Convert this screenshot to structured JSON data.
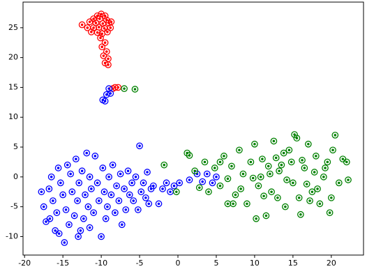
{
  "chart_data": {
    "type": "scatter",
    "xlim": [
      -20.2,
      24.2
    ],
    "ylim": [
      -13.1,
      29.3
    ],
    "xticks": [
      -20,
      -15,
      -10,
      -5,
      0,
      5,
      10,
      15,
      20
    ],
    "yticks": [
      -10,
      -5,
      0,
      5,
      10,
      15,
      20,
      25
    ],
    "series": [
      {
        "color": "#ff0000",
        "x": [
          -10.5,
          -10,
          -9.5,
          -11,
          -10.2,
          -9.3,
          -11.5,
          -10.7,
          -9.8,
          -9,
          -11.8,
          -11,
          -10.3,
          -9.6,
          -8.8,
          -11.3,
          -10.5,
          -9.9,
          -9.2,
          -10.1,
          -9.5,
          -9.9,
          -9.3,
          -9.7,
          -9.1,
          -9.5,
          -9.1,
          -8.5,
          -8.2,
          -7.8,
          -12.5,
          -8.7
        ],
        "y": [
          27,
          27.3,
          27,
          26.5,
          26.5,
          26.3,
          26,
          25.8,
          25.7,
          25.8,
          25,
          25,
          25.1,
          24.9,
          25,
          24.3,
          24.2,
          24,
          24.3,
          23.3,
          22.5,
          21.8,
          21,
          20.3,
          19.8,
          19.1,
          18.8,
          14.8,
          15,
          15,
          25.5,
          26
        ]
      },
      {
        "color": "#0000ff",
        "x": [
          -9,
          -9.3,
          -9.8,
          -9.5,
          -8.8,
          -17.8,
          -17.5,
          -17.2,
          -16.8,
          -16.5,
          -16.3,
          -16,
          -15.8,
          -15.6,
          -15.3,
          -15,
          -14.8,
          -14.6,
          -14.4,
          -14.2,
          -14,
          -13.8,
          -13.5,
          -13.3,
          -13.1,
          -12.9,
          -12.7,
          -12.5,
          -12.3,
          -12.1,
          -11.9,
          -11.7,
          -11.5,
          -11.3,
          -11,
          -10.8,
          -10.5,
          -10.3,
          -10,
          -9.8,
          -9.6,
          -9.4,
          -9.2,
          -9,
          -8.7,
          -8.5,
          -8.2,
          -8,
          -7.7,
          -7.5,
          -7.3,
          -7,
          -6.8,
          -6.5,
          -6.3,
          -6,
          -5.8,
          -5.5,
          -5.2,
          -5,
          -4.8,
          -4.5,
          -4.2,
          -4,
          -3.8,
          -3.5,
          -3.2,
          -2.5,
          -2,
          -1.5,
          -1,
          -0.5,
          0.2,
          1.5,
          2.5,
          3.2,
          3.8,
          4.5,
          5,
          -15.5,
          -13,
          -11.5,
          -16.7
        ],
        "y": [
          14.8,
          13.8,
          12.9,
          12.7,
          14,
          -2.5,
          -5,
          -7.5,
          -2,
          0,
          -4,
          -9,
          -6,
          1.5,
          -1,
          -3,
          -11,
          -5.5,
          2,
          -8,
          0.5,
          -2.5,
          -6.5,
          3,
          -4,
          -1,
          -9,
          1,
          -7,
          -3,
          4,
          -5,
          0,
          -2,
          -6,
          3.5,
          -1,
          -4,
          -10,
          1.5,
          -2.5,
          -7,
          -5,
          0,
          -3,
          2,
          -6,
          -1.5,
          -4,
          0.5,
          -8,
          -2,
          -5.5,
          1,
          -3,
          -1,
          -4,
          0,
          -5.5,
          5.2,
          -2.5,
          -1,
          -3.5,
          0.8,
          -4.5,
          -2,
          -1.5,
          -4.5,
          -2,
          -1,
          -2.5,
          -1.5,
          -1,
          -0.5,
          0.5,
          -0.8,
          0.5,
          -1,
          0,
          -9.5,
          -10,
          -8.5,
          -7
        ]
      },
      {
        "color": "#008000",
        "x": [
          -7,
          -5.6,
          -1.8,
          -0.2,
          1.2,
          1.5,
          2.2,
          2.8,
          3.5,
          4,
          4.8,
          5.5,
          6,
          6.5,
          7,
          7.5,
          8,
          8.5,
          9,
          9.5,
          10,
          10.5,
          11,
          11.5,
          12,
          12.5,
          13,
          13.5,
          14,
          14.5,
          15,
          15.5,
          16,
          16.5,
          17,
          17.5,
          18,
          18.5,
          19,
          19.5,
          20,
          20.5,
          21,
          21.5,
          22,
          22.2,
          8.2,
          10.2,
          12.2,
          14.2,
          16.2,
          18.2,
          20.2,
          9.8,
          11.8,
          13.8,
          15.8,
          17.8,
          19.8,
          15.2,
          11.2,
          7.2,
          13.2,
          17.2,
          19.2,
          12.8,
          14.8,
          16.8,
          6.5,
          5.5,
          10.8
        ],
        "y": [
          14.8,
          14.7,
          2,
          -2.5,
          4,
          3.6,
          1,
          -1.8,
          2.5,
          -2.5,
          1.5,
          -1.5,
          3.5,
          -0.3,
          1.8,
          -3,
          4.5,
          0.5,
          -4.5,
          2.5,
          5.5,
          -1.5,
          3,
          -6.5,
          0.5,
          6,
          -3.5,
          2,
          -5,
          4.5,
          -1,
          6.5,
          -6.3,
          1.5,
          5.5,
          -2.5,
          3.5,
          -4.5,
          0,
          2.5,
          -3.5,
          7,
          -1,
          3,
          2.5,
          -0.5,
          -2,
          -7,
          -2.5,
          -0.5,
          2.8,
          -2,
          4.5,
          -0.2,
          1.8,
          4,
          -3.5,
          0.8,
          -6,
          7.1,
          -3.2,
          -4.5,
          1,
          -4,
          1.5,
          3.2,
          2.5,
          -1.2,
          -4.5,
          2.5,
          0
        ]
      }
    ]
  }
}
